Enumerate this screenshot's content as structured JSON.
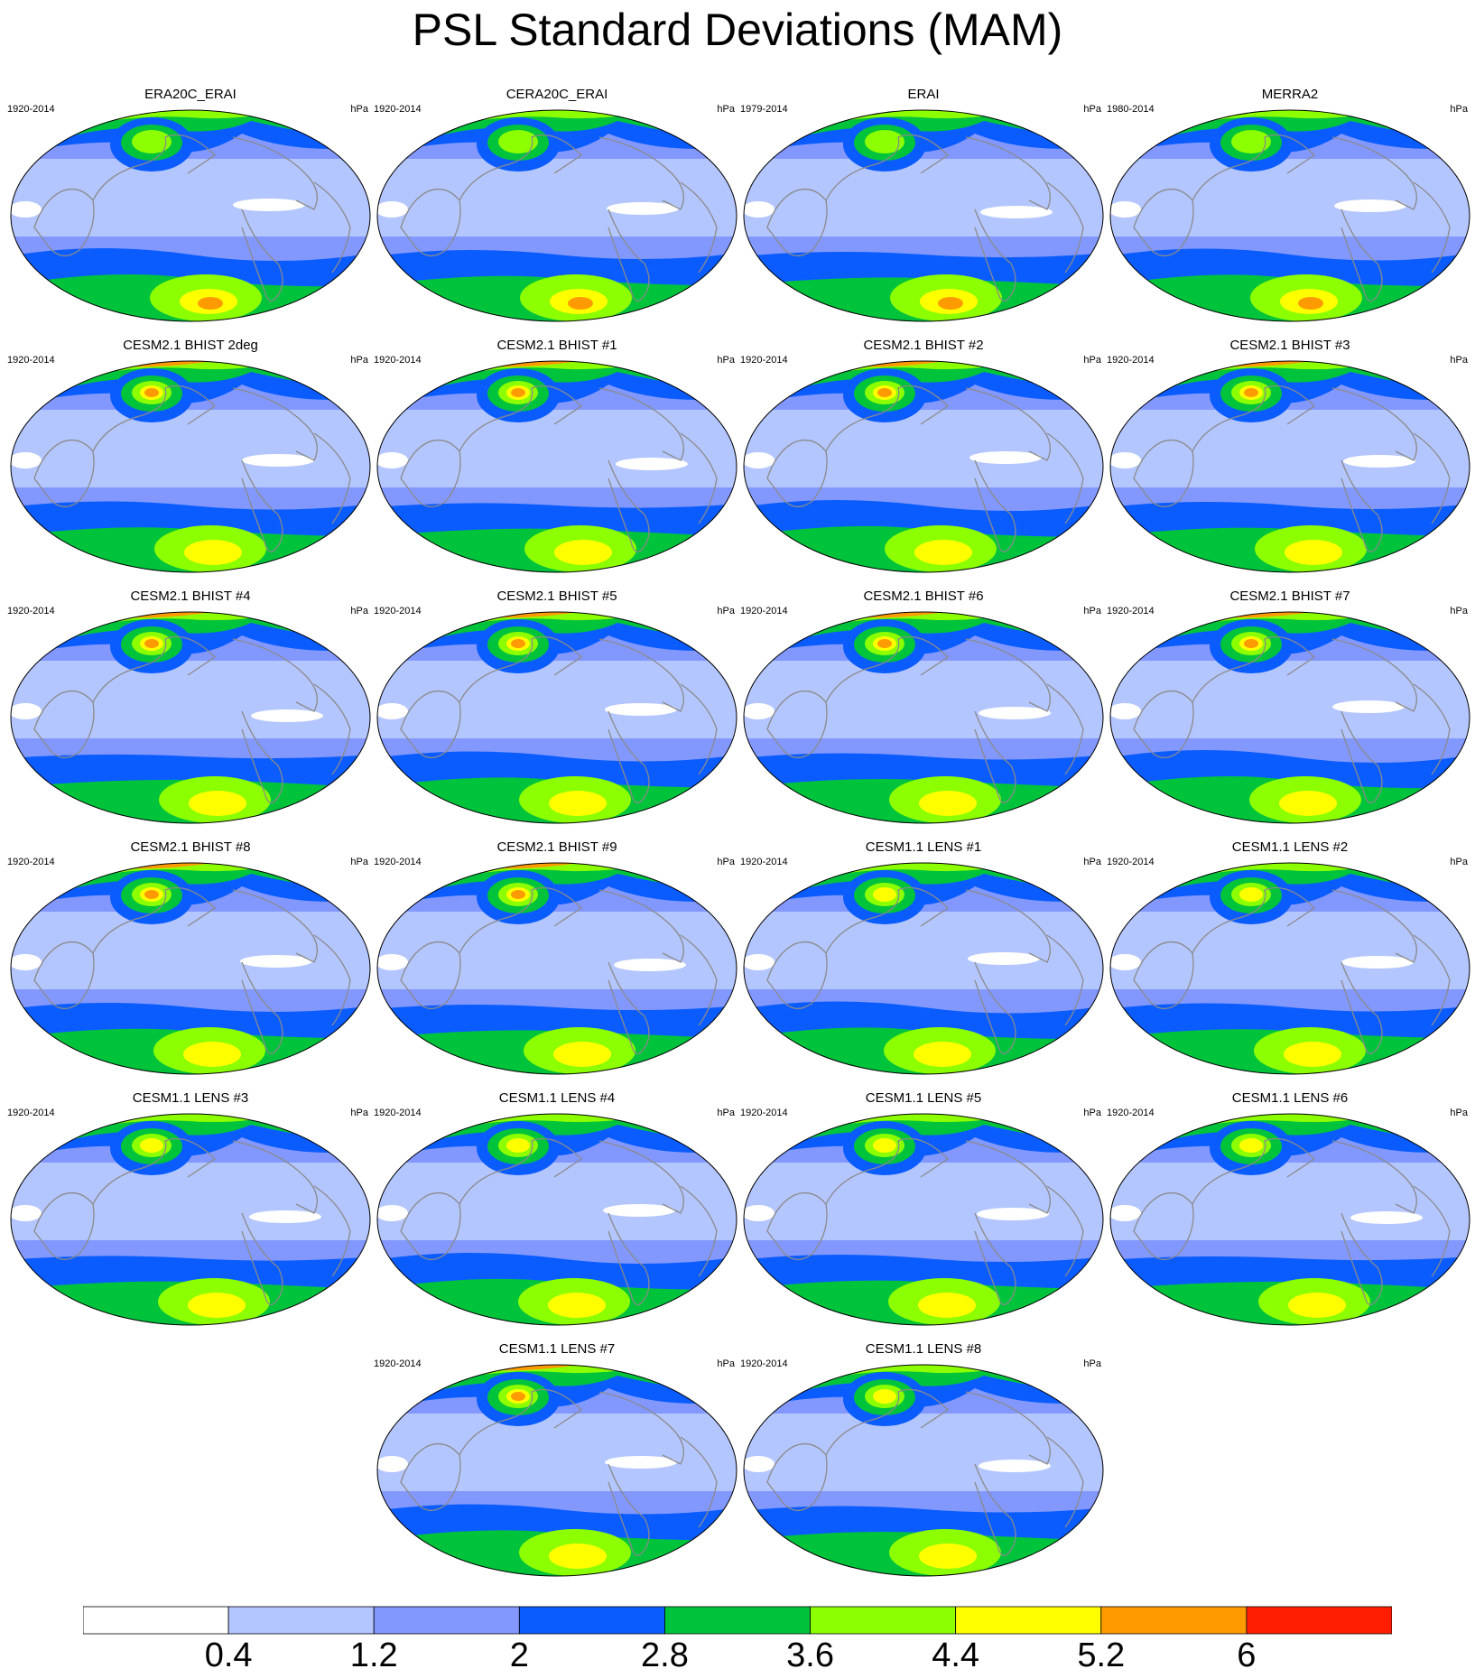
{
  "title": "PSL Standard Deviations (MAM)",
  "panels": [
    {
      "title": "ERA20C_ERAI",
      "years": "1920-2014",
      "units": "hPa",
      "nh_max": 4.4
    },
    {
      "title": "CERA20C_ERAI",
      "years": "1920-2014",
      "units": "hPa",
      "nh_max": 4.4
    },
    {
      "title": "ERAI",
      "years": "1979-2014",
      "units": "hPa",
      "nh_max": 4.4
    },
    {
      "title": "MERRA2",
      "years": "1980-2014",
      "units": "hPa",
      "nh_max": 4.4
    },
    {
      "title": "CESM2.1 BHIST 2deg",
      "years": "1920-2014",
      "units": "hPa",
      "nh_max": 6
    },
    {
      "title": "CESM2.1 BHIST #1",
      "years": "1920-2014",
      "units": "hPa",
      "nh_max": 6
    },
    {
      "title": "CESM2.1 BHIST #2",
      "years": "1920-2014",
      "units": "hPa",
      "nh_max": 6
    },
    {
      "title": "CESM2.1 BHIST #3",
      "years": "1920-2014",
      "units": "hPa",
      "nh_max": 6
    },
    {
      "title": "CESM2.1 BHIST #4",
      "years": "1920-2014",
      "units": "hPa",
      "nh_max": 6
    },
    {
      "title": "CESM2.1 BHIST #5",
      "years": "1920-2014",
      "units": "hPa",
      "nh_max": 6
    },
    {
      "title": "CESM2.1 BHIST #6",
      "years": "1920-2014",
      "units": "hPa",
      "nh_max": 6
    },
    {
      "title": "CESM2.1 BHIST #7",
      "years": "1920-2014",
      "units": "hPa",
      "nh_max": 6
    },
    {
      "title": "CESM2.1 BHIST #8",
      "years": "1920-2014",
      "units": "hPa",
      "nh_max": 6
    },
    {
      "title": "CESM2.1 BHIST #9",
      "years": "1920-2014",
      "units": "hPa",
      "nh_max": 6
    },
    {
      "title": "CESM1.1 LENS #1",
      "years": "1920-2014",
      "units": "hPa",
      "nh_max": 5.2
    },
    {
      "title": "CESM1.1 LENS #2",
      "years": "1920-2014",
      "units": "hPa",
      "nh_max": 5.2
    },
    {
      "title": "CESM1.1 LENS #3",
      "years": "1920-2014",
      "units": "hPa",
      "nh_max": 5.2
    },
    {
      "title": "CESM1.1 LENS #4",
      "years": "1920-2014",
      "units": "hPa",
      "nh_max": 5.2
    },
    {
      "title": "CESM1.1 LENS #5",
      "years": "1920-2014",
      "units": "hPa",
      "nh_max": 5.2
    },
    {
      "title": "CESM1.1 LENS #6",
      "years": "1920-2014",
      "units": "hPa",
      "nh_max": 5.2
    },
    {
      "title": "CESM1.1 LENS #7",
      "years": "1920-2014",
      "units": "hPa",
      "nh_max": 6
    },
    {
      "title": "CESM1.1 LENS #8",
      "years": "1920-2014",
      "units": "hPa",
      "nh_max": 5.2
    }
  ],
  "colorbar": {
    "labels": [
      "0.4",
      "1.2",
      "2",
      "2.8",
      "3.6",
      "4.4",
      "5.2",
      "6"
    ],
    "colors": [
      "#ffffff",
      "#b4c6ff",
      "#8398ff",
      "#0a5cff",
      "#00c33c",
      "#8cff00",
      "#ffff00",
      "#ff9a00",
      "#ff1e00"
    ]
  }
}
